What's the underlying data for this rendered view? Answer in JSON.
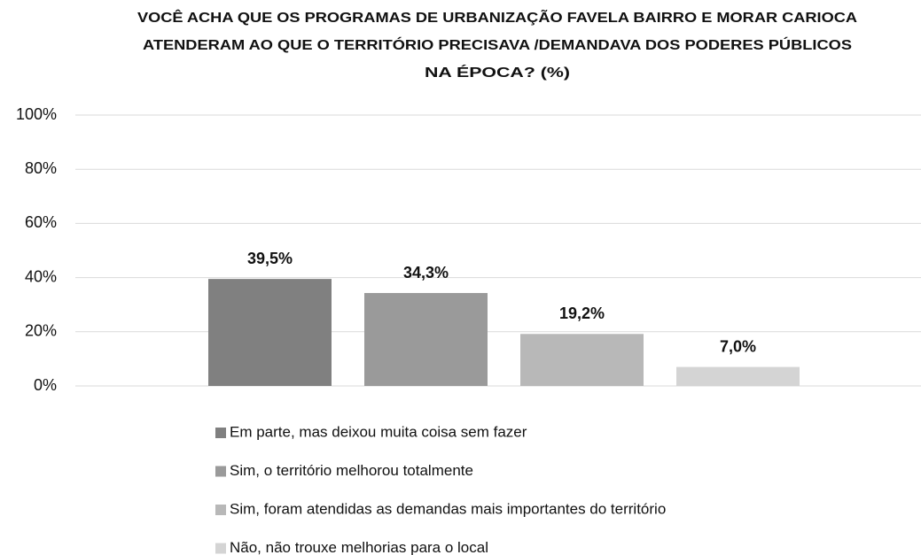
{
  "chart_data": {
    "type": "bar",
    "title": [
      "VOCÊ ACHA QUE OS PROGRAMAS DE URBANIZAÇÃO FAVELA BAIRRO E MORAR CARIOCA",
      "ATENDERAM AO QUE O TERRITÓRIO PRECISAVA /DEMANDAVA DOS PODERES PÚBLICOS",
      "NA ÉPOCA? (%)"
    ],
    "series": [
      {
        "name": "Em parte, mas deixou muita coisa sem fazer",
        "color": "#808080",
        "values": [
          39.5
        ],
        "value_labels": [
          "39,5%"
        ]
      },
      {
        "name": "Sim, o território melhorou totalmente",
        "color": "#9a9a9a",
        "values": [
          34.3
        ],
        "value_labels": [
          "34,3%"
        ]
      },
      {
        "name": "Sim, foram atendidas as demandas mais importantes do território",
        "color": "#b8b8b8",
        "values": [
          19.2
        ],
        "value_labels": [
          "19,2%"
        ]
      },
      {
        "name": "Não, não trouxe melhorias para o local",
        "color": "#d4d4d4",
        "values": [
          7.0
        ],
        "value_labels": [
          "7,0%"
        ]
      }
    ],
    "ylim": [
      0,
      100
    ],
    "yticks": [
      {
        "value": 0,
        "label": "0%"
      },
      {
        "value": 20,
        "label": "20%"
      },
      {
        "value": 40,
        "label": "40%"
      },
      {
        "value": 60,
        "label": "60%"
      },
      {
        "value": 80,
        "label": "80%"
      },
      {
        "value": 100,
        "label": "100%"
      }
    ],
    "grid": true,
    "legend": "bottom"
  }
}
